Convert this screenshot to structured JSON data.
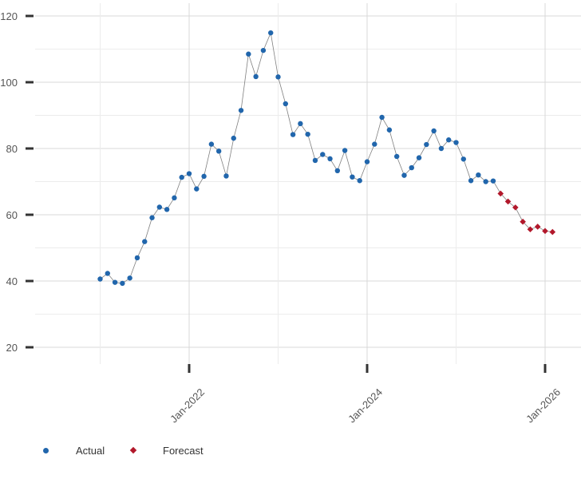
{
  "chart_data": {
    "type": "scatter",
    "title": "",
    "xlabel": "",
    "ylabel": "",
    "ylim": [
      15,
      125
    ],
    "y_ticks": [
      20,
      40,
      60,
      80,
      100,
      120
    ],
    "y_tick_labels": [
      "20",
      "40",
      "60",
      "80",
      "100",
      "120"
    ],
    "x_range": [
      "2020-10",
      "2026-06"
    ],
    "x_ticks": [
      "2022-01",
      "2024-01",
      "2026-01"
    ],
    "x_tick_labels": [
      "Jan-2022",
      "Jan-2024",
      "Jan-2026"
    ],
    "grid": true,
    "legend_position": "bottom-left",
    "colors": {
      "actual": "#2166ac",
      "forecast": "#b2182b",
      "line": "#808080",
      "grid": "#d9d9d9"
    },
    "series": [
      {
        "name": "Actual",
        "marker": "circle",
        "x": [
          "2021-01",
          "2021-02",
          "2021-03",
          "2021-04",
          "2021-05",
          "2021-06",
          "2021-07",
          "2021-08",
          "2021-09",
          "2021-10",
          "2021-11",
          "2021-12",
          "2022-01",
          "2022-02",
          "2022-03",
          "2022-04",
          "2022-05",
          "2022-06",
          "2022-07",
          "2022-08",
          "2022-09",
          "2022-10",
          "2022-11",
          "2022-12",
          "2023-01",
          "2023-02",
          "2023-03",
          "2023-04",
          "2023-05",
          "2023-06",
          "2023-07",
          "2023-08",
          "2023-09",
          "2023-10",
          "2023-11",
          "2023-12",
          "2024-01",
          "2024-02",
          "2024-03",
          "2024-04",
          "2024-05",
          "2024-06",
          "2024-07",
          "2024-08",
          "2024-09",
          "2024-10",
          "2024-11",
          "2024-12",
          "2025-01",
          "2025-02",
          "2025-03",
          "2025-04",
          "2025-05",
          "2025-06"
        ],
        "values": [
          40.6,
          42.3,
          39.6,
          39.3,
          40.9,
          47,
          51.9,
          59.1,
          62.3,
          61.6,
          65.1,
          71.3,
          72.4,
          67.8,
          71.6,
          81.3,
          79.2,
          71.7,
          83.1,
          91.5,
          108.5,
          101.7,
          109.6,
          114.9,
          101.6,
          93.5,
          84.2,
          87.5,
          84.3,
          76.4,
          78.2,
          76.9,
          73.3,
          79.4,
          71.4,
          70.3,
          76,
          81.3,
          89.4,
          85.6,
          77.6,
          71.9,
          74.2,
          77.2,
          81.2,
          85.3,
          80,
          82.6,
          81.8,
          76.8,
          70.3,
          72,
          70,
          70.2
        ]
      },
      {
        "name": "Forecast",
        "marker": "diamond",
        "x": [
          "2025-07",
          "2025-08",
          "2025-09",
          "2025-10",
          "2025-11",
          "2025-12",
          "2026-01",
          "2026-02"
        ],
        "values": [
          66.4,
          64,
          62.2,
          57.9,
          55.6,
          56.4,
          55.1,
          54.8
        ]
      }
    ]
  }
}
